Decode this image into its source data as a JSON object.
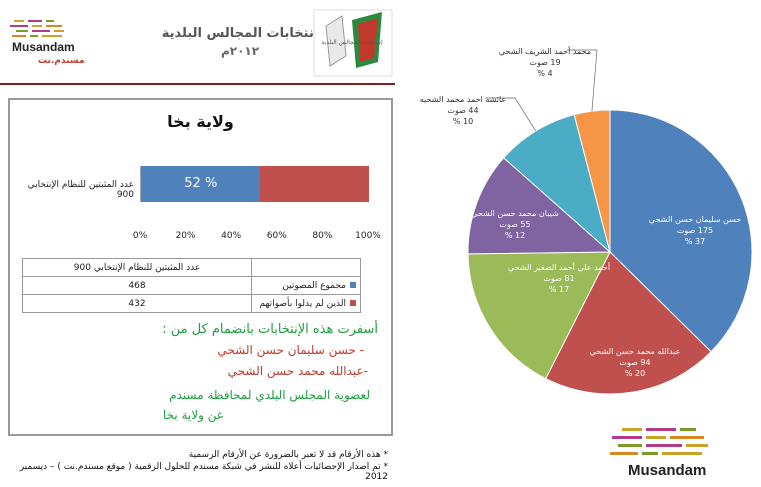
{
  "header": {
    "site_name": "Musandam",
    "site_name_ar": "مسندم.نت",
    "title": "إنتخابات المجالس البلدية",
    "year": "٢٠١٢م",
    "logo_text": "إنتخابات المجالس البلدية"
  },
  "panel": {
    "title": "ولاية بخا",
    "bar_label": "عدد المثبتين للنظام الإنتخابي 900",
    "bar_pct_label": "52 %",
    "x_ticks": [
      "0%",
      "20%",
      "40%",
      "60%",
      "80%",
      "100%"
    ],
    "table_header": "عدد المثبتين للنظام الإنتخابي 900",
    "table_rows": [
      {
        "label": "مجموع المصوتين",
        "value": "468",
        "color": "#4f81bd"
      },
      {
        "label": "الذين لم يدلوا بأصواتهم",
        "value": "432",
        "color": "#c0504d"
      }
    ],
    "result_intro": "أسفرت هذه الإنتخابات بانضمام كل من :",
    "winner_1": "- حسن سليمان حسن الشحي",
    "winner_2": "-عبدالله محمد حسن الشحي",
    "result_line_1": "لعضوية المجلس البلدي لمحافظة مسندم",
    "result_line_2": "عن ولاية بخا"
  },
  "footnotes": {
    "note_1": "* هذه الأرقام قد لا تعبر بالضرورة عن الأرقام الرسمية",
    "note_2": "* تم اصدار الإحصائيات أعلاه للنشر في شبكة مسندم للحلول الرقمية ( موقع مسندم.نت ) – ديسمبر 2012"
  },
  "chart_data": [
    {
      "type": "bar",
      "orientation": "horizontal-stacked",
      "categories": [
        "عدد المثبتين للنظام الإنتخابي 900"
      ],
      "series": [
        {
          "name": "مجموع المصوتين",
          "values": [
            52
          ],
          "color": "#4f81bd"
        },
        {
          "name": "الذين لم يدلوا بأصواتهم",
          "values": [
            48
          ],
          "color": "#c0504d"
        }
      ],
      "title": "ولاية بخا",
      "xlim": [
        0,
        100
      ],
      "x_tick_labels": [
        "0%",
        "20%",
        "40%",
        "60%",
        "80%",
        "100%"
      ]
    },
    {
      "type": "pie",
      "slices": [
        {
          "name": "حسن سليمان حسن الشحي",
          "votes_label": "175 صوت",
          "value": 175,
          "pct_label": "37 %",
          "color": "#4f81bd"
        },
        {
          "name": "عبدالله محمد حسن الشحي",
          "votes_label": "94 صوت",
          "value": 94,
          "pct_label": "20 %",
          "color": "#c0504d"
        },
        {
          "name": "أحمد علي أحمد الصغير الشحي",
          "votes_label": "81 صوت",
          "value": 81,
          "pct_label": "17 %",
          "color": "#9bbb59"
        },
        {
          "name": "شيبان محمد حسن الشحي",
          "votes_label": "55 صوت",
          "value": 55,
          "pct_label": "12 %",
          "color": "#8064a2"
        },
        {
          "name": "عائشه احمد محمد الشحيه",
          "votes_label": "44 صوت",
          "value": 44,
          "pct_label": "10 %",
          "color": "#4bacc6"
        },
        {
          "name": "محمد أحمد الشريف الشحي",
          "votes_label": "19 صوت",
          "value": 19,
          "pct_label": "4 %",
          "color": "#f79646"
        }
      ]
    }
  ]
}
